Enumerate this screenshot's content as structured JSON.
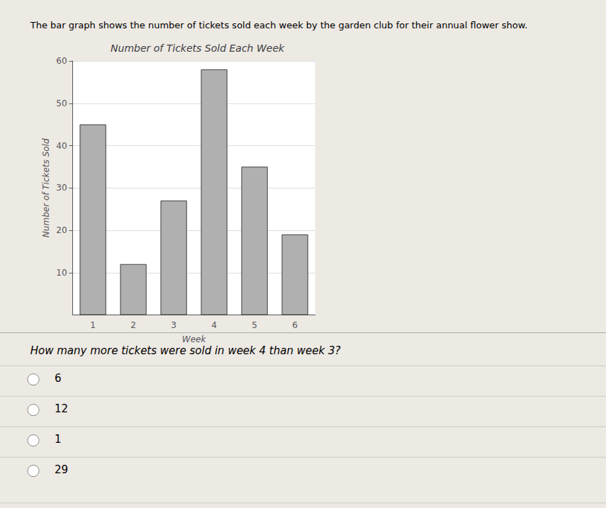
{
  "chart_data": {
    "type": "bar",
    "title": "Number of Tickets Sold Each Week",
    "subtitle": "The bar graph shows the number of tickets sold each week by the garden club for their annual flower show.",
    "xlabel": "Week",
    "ylabel": "Number of Tickets Sold",
    "categories": [
      "1",
      "2",
      "3",
      "4",
      "5",
      "6"
    ],
    "values": [
      45,
      12,
      27,
      58,
      35,
      19
    ],
    "color": "#b0b0b0",
    "ylim": [
      0,
      60
    ],
    "yticks": [
      10,
      20,
      30,
      40,
      50,
      60
    ],
    "grid": true,
    "annotations": [
      "How many more tickets were sold in week 4 than week 3?",
      "6",
      "12",
      "1",
      "29"
    ]
  }
}
